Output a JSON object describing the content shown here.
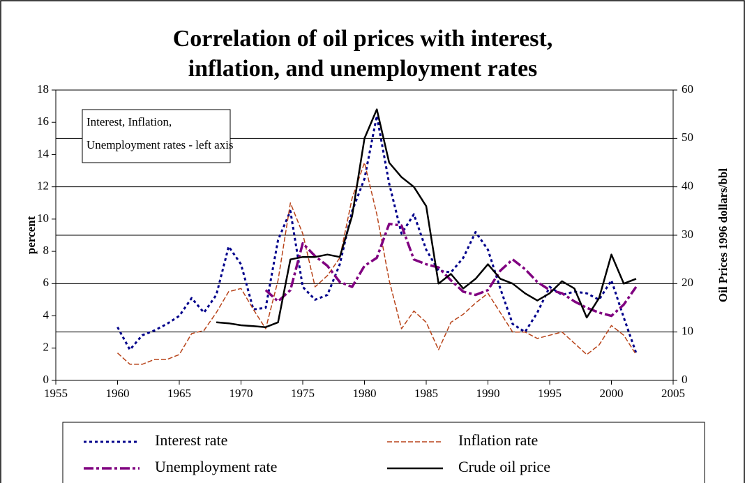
{
  "chart_data": {
    "type": "line",
    "title": [
      "Correlation of oil prices with interest,",
      "inflation, and unemployment rates"
    ],
    "ylabel": "percent",
    "y2label": "Oil Prices 1996 dollars/bbl",
    "annotation": [
      "Interest, Inflation,",
      "Unemployment rates - left axis"
    ],
    "x": [
      1960,
      1961,
      1962,
      1963,
      1964,
      1965,
      1966,
      1967,
      1968,
      1969,
      1970,
      1971,
      1972,
      1973,
      1974,
      1975,
      1976,
      1977,
      1978,
      1979,
      1980,
      1981,
      1982,
      1983,
      1984,
      1985,
      1986,
      1987,
      1988,
      1989,
      1990,
      1991,
      1992,
      1993,
      1994,
      1995,
      1996,
      1997,
      1998,
      1999,
      2000,
      2001,
      2002
    ],
    "xlim": [
      1955,
      2005
    ],
    "xticks": [
      1955,
      1960,
      1965,
      1970,
      1975,
      1980,
      1985,
      1990,
      1995,
      2000,
      2005
    ],
    "ylim": [
      0,
      18
    ],
    "yticks": [
      0,
      2,
      4,
      6,
      8,
      10,
      12,
      14,
      16,
      18
    ],
    "y2lim": [
      0,
      60
    ],
    "y2ticks": [
      0,
      10,
      20,
      30,
      40,
      50,
      60
    ],
    "grid": "y2",
    "series": [
      {
        "name": "Interest rate",
        "color": "#00008b",
        "style": "dotted",
        "values": [
          3.3,
          1.9,
          2.8,
          3.1,
          3.5,
          4.0,
          5.1,
          4.2,
          5.3,
          8.3,
          7.2,
          4.4,
          4.5,
          8.7,
          10.5,
          5.8,
          5.0,
          5.3,
          7.2,
          10.5,
          12.5,
          16.4,
          12.2,
          9.1,
          10.3,
          8.1,
          6.8,
          6.7,
          7.6,
          9.2,
          8.1,
          5.7,
          3.5,
          3.0,
          4.2,
          5.8,
          5.3,
          5.5,
          5.4,
          5.0,
          6.2,
          3.9,
          1.7
        ]
      },
      {
        "name": "Inflation rate",
        "color": "#b8441a",
        "style": "dashed",
        "values": [
          1.7,
          1.0,
          1.0,
          1.3,
          1.3,
          1.6,
          2.9,
          3.1,
          4.2,
          5.5,
          5.7,
          4.4,
          3.2,
          6.2,
          11.0,
          9.1,
          5.8,
          6.5,
          7.6,
          11.3,
          13.5,
          10.3,
          6.2,
          3.2,
          4.3,
          3.6,
          1.9,
          3.6,
          4.1,
          4.8,
          5.4,
          4.2,
          3.0,
          3.0,
          2.6,
          2.8,
          3.0,
          2.3,
          1.6,
          2.2,
          3.4,
          2.8,
          1.6
        ]
      },
      {
        "name": "Unemployment rate",
        "color": "#800080",
        "style": "dashdot",
        "values": [
          null,
          null,
          null,
          null,
          null,
          null,
          null,
          null,
          null,
          null,
          null,
          null,
          5.6,
          4.9,
          5.6,
          8.5,
          7.7,
          7.1,
          6.1,
          5.8,
          7.1,
          7.6,
          9.7,
          9.6,
          7.5,
          7.2,
          7.0,
          6.2,
          5.5,
          5.3,
          5.6,
          6.8,
          7.5,
          6.9,
          6.1,
          5.6,
          5.4,
          4.9,
          4.5,
          4.2,
          4.0,
          4.7,
          5.8
        ]
      },
      {
        "name": "Crude oil price",
        "color": "#000000",
        "style": "solid",
        "axis": "y2",
        "values": [
          null,
          null,
          null,
          null,
          null,
          null,
          null,
          null,
          12,
          11.8,
          11.4,
          11.2,
          11,
          12,
          25,
          25.5,
          25.5,
          26,
          25.5,
          34,
          50,
          56,
          45,
          42,
          40,
          36,
          20,
          22,
          19,
          21,
          24,
          21,
          20,
          18,
          16.5,
          18,
          20.5,
          19,
          13,
          17,
          26,
          20,
          21
        ]
      }
    ]
  }
}
